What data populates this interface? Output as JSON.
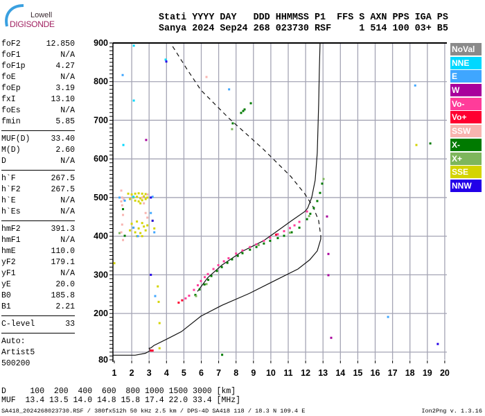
{
  "logo": {
    "line1": "Lowell",
    "line2": "DIGISONDE"
  },
  "header": {
    "labels": "Stati YYYY DAY   DDD HHMMSS P1  FFS S AXN PPS IGA PS",
    "values": "Sanya 2024 Sep24 268 023730 RSF     1 514 100 03+ B5"
  },
  "scaled": [
    [
      [
        "foF2",
        "12.850"
      ],
      [
        "foF1",
        "N/A"
      ],
      [
        "foF1p",
        "4.27"
      ],
      [
        "foE",
        "N/A"
      ],
      [
        "foEp",
        "3.19"
      ],
      [
        "fxI",
        "13.10"
      ],
      [
        "foEs",
        "N/A"
      ],
      [
        "fmin",
        "5.85"
      ]
    ],
    [
      [
        "MUF(D)",
        "33.40"
      ],
      [
        "M(D)",
        "2.60"
      ],
      [
        "D",
        "N/A"
      ]
    ],
    [
      [
        "h`F",
        "267.5"
      ],
      [
        "h`F2",
        "267.5"
      ],
      [
        "h`E",
        "N/A"
      ],
      [
        "h`Es",
        "N/A"
      ]
    ],
    [
      [
        "hmF2",
        "391.3"
      ],
      [
        "hmF1",
        "N/A"
      ],
      [
        "hmE",
        "110.0"
      ],
      [
        "yF2",
        "179.1"
      ],
      [
        "yF1",
        "N/A"
      ],
      [
        "yE",
        "20.0"
      ],
      [
        "B0",
        "185.8"
      ],
      [
        "B1",
        "2.21"
      ]
    ],
    [
      [
        "C-level",
        "33"
      ]
    ],
    [
      [
        "Auto:",
        ""
      ],
      [
        "Artist5",
        ""
      ],
      [
        "500200",
        ""
      ]
    ]
  ],
  "muf_table": {
    "d_row": "D     100  200  400  600  800 1000 1500 3000 [km]",
    "muf_row": "MUF  13.4 13.5 14.0 14.8 15.8 17.4 22.0 33.4 [MHz]"
  },
  "footer": {
    "info": "SA418_2024268023730.RSF / 380fx512h 50 kHz 2.5 km / DPS-4D SA418 118 / 18.3 N 109.4 E",
    "version": "Ion2Png v. 1.3.16"
  },
  "legend": [
    {
      "label": "NoVal",
      "color": "#8a8a8a"
    },
    {
      "label": "NNE",
      "color": "#00d8ff"
    },
    {
      "label": "E",
      "color": "#3fa6ff"
    },
    {
      "label": "W",
      "color": "#a8009c"
    },
    {
      "label": "Vo-",
      "color": "#ff3c9a"
    },
    {
      "label": "Vo+",
      "color": "#ff0030"
    },
    {
      "label": "SSW",
      "color": "#f8b4b0"
    },
    {
      "label": "X-",
      "color": "#007a00"
    },
    {
      "label": "X+",
      "color": "#7db65c"
    },
    {
      "label": "SSE",
      "color": "#d4d400"
    },
    {
      "label": "NNW",
      "color": "#2200e8"
    }
  ],
  "chart_data": {
    "type": "scatter",
    "xlabel": "",
    "ylabel": "",
    "xlim": [
      1,
      20
    ],
    "ylim": [
      80,
      900
    ],
    "x_ticks": [
      "1",
      "2",
      "3",
      "4",
      "5",
      "6",
      "7",
      "8",
      "9",
      "10",
      "11",
      "12",
      "13",
      "14",
      "15",
      "16",
      "17",
      "18",
      "19",
      "20"
    ],
    "y_ticks": [
      {
        "v": 900,
        "label": "900"
      },
      {
        "v": 800,
        "label": "800"
      },
      {
        "v": 700,
        "label": "700"
      },
      {
        "v": 600,
        "label": "600"
      },
      {
        "v": 500,
        "label": "500"
      },
      {
        "v": 400,
        "label": "400"
      },
      {
        "v": 300,
        "label": "300"
      },
      {
        "v": 200,
        "label": "200"
      },
      {
        "v": 80,
        "label": "80"
      }
    ],
    "grid": true,
    "legend_placement": "right",
    "series": [
      {
        "legend": "Vo-",
        "points": [
          [
            5.1,
            239
          ],
          [
            5.3,
            246
          ],
          [
            5.58,
            261
          ],
          [
            5.8,
            273
          ],
          [
            5.98,
            284
          ],
          [
            6.2,
            294
          ],
          [
            6.38,
            302
          ],
          [
            6.7,
            315
          ],
          [
            6.98,
            325
          ],
          [
            7.3,
            335
          ],
          [
            7.57,
            343
          ],
          [
            8.0,
            355
          ],
          [
            8.37,
            363
          ],
          [
            8.8,
            372
          ],
          [
            9.17,
            379
          ],
          [
            9.6,
            388
          ],
          [
            9.96,
            396
          ],
          [
            10.4,
            405
          ],
          [
            10.76,
            413
          ],
          [
            11.1,
            421
          ],
          [
            11.36,
            428
          ],
          [
            11.64,
            437
          ],
          [
            12.08,
            464
          ]
        ]
      },
      {
        "legend": "Vo+",
        "points": [
          [
            4.7,
            228
          ],
          [
            4.9,
            234
          ],
          [
            10.3,
            404
          ],
          [
            3.1,
            104
          ],
          [
            3.2,
            104
          ]
        ]
      },
      {
        "legend": "X-",
        "points": [
          [
            5.66,
            248
          ],
          [
            5.9,
            262
          ],
          [
            6.18,
            275
          ],
          [
            6.4,
            287
          ],
          [
            6.58,
            297
          ],
          [
            6.9,
            310
          ],
          [
            7.18,
            320
          ],
          [
            7.5,
            331
          ],
          [
            7.77,
            340
          ],
          [
            8.1,
            349
          ],
          [
            8.37,
            356
          ],
          [
            8.8,
            365
          ],
          [
            9.17,
            372
          ],
          [
            9.6,
            381
          ],
          [
            9.96,
            388
          ],
          [
            10.4,
            395
          ],
          [
            10.76,
            401
          ],
          [
            11.2,
            410
          ],
          [
            11.64,
            422
          ],
          [
            12.08,
            444
          ],
          [
            12.27,
            458
          ],
          [
            12.47,
            473
          ],
          [
            12.67,
            491
          ],
          [
            12.83,
            512
          ],
          [
            12.95,
            536
          ],
          [
            8.29,
            719
          ],
          [
            8.41,
            724
          ],
          [
            8.49,
            728
          ],
          [
            8.85,
            744
          ],
          [
            7.81,
            692
          ],
          [
            1.5,
            470
          ],
          [
            1.6,
            401
          ],
          [
            19.17,
            640
          ],
          [
            7.2,
            93
          ]
        ]
      },
      {
        "legend": "X+",
        "points": [
          [
            5.7,
            245
          ],
          [
            6.3,
            276
          ],
          [
            9.3,
            377
          ],
          [
            11.1,
            409
          ],
          [
            12.2,
            452
          ],
          [
            13.03,
            548
          ],
          [
            7.77,
            677
          ],
          [
            1.3,
            408
          ]
        ]
      },
      {
        "legend": "SSE",
        "points": [
          [
            1.8,
            510
          ],
          [
            2.0,
            508
          ],
          [
            2.2,
            510
          ],
          [
            2.4,
            511
          ],
          [
            2.6,
            510
          ],
          [
            2.8,
            509
          ],
          [
            2.1,
            500
          ],
          [
            2.3,
            502
          ],
          [
            2.5,
            498
          ],
          [
            2.7,
            503
          ],
          [
            2.9,
            500
          ],
          [
            2.2,
            492
          ],
          [
            2.4,
            490
          ],
          [
            2.6,
            493
          ],
          [
            1.9,
            496
          ],
          [
            2.5,
            485
          ],
          [
            2.8,
            496
          ],
          [
            2.0,
            432
          ],
          [
            2.3,
            438
          ],
          [
            2.6,
            434
          ],
          [
            2.9,
            428
          ],
          [
            2.1,
            422
          ],
          [
            2.4,
            420
          ],
          [
            2.7,
            425
          ],
          [
            2.2,
            410
          ],
          [
            2.5,
            408
          ],
          [
            2.3,
            400
          ],
          [
            2.6,
            400
          ],
          [
            1.9,
            415
          ],
          [
            2.8,
            415
          ],
          [
            3.2,
            440
          ],
          [
            3.3,
            420
          ],
          [
            1.0,
            330
          ],
          [
            3.5,
            270
          ],
          [
            3.55,
            230
          ],
          [
            3.6,
            175
          ],
          [
            3.6,
            110
          ],
          [
            18.37,
            636
          ]
        ]
      },
      {
        "legend": "SSW",
        "points": [
          [
            1.4,
            518
          ],
          [
            1.45,
            500
          ],
          [
            1.4,
            490
          ],
          [
            1.55,
            495
          ],
          [
            1.45,
            480
          ],
          [
            1.5,
            455
          ],
          [
            1.45,
            430
          ],
          [
            1.4,
            410
          ],
          [
            1.5,
            390
          ],
          [
            2.9,
            508
          ],
          [
            2.6,
            500
          ],
          [
            2.7,
            485
          ],
          [
            2.8,
            460
          ],
          [
            2.9,
            448
          ],
          [
            6.3,
            812
          ]
        ]
      },
      {
        "legend": "E",
        "points": [
          [
            1.48,
            817
          ],
          [
            1.3,
            500
          ],
          [
            1.6,
            492
          ],
          [
            2.1,
            422
          ],
          [
            2.35,
            400
          ],
          [
            3.2,
            502
          ],
          [
            3.1,
            460
          ],
          [
            3.3,
            410
          ],
          [
            3.35,
            245
          ],
          [
            16.74,
            191
          ],
          [
            18.3,
            790
          ],
          [
            7.6,
            780
          ]
        ]
      },
      {
        "legend": "NNE",
        "points": [
          [
            2.12,
            893
          ],
          [
            2.12,
            751
          ],
          [
            1.52,
            636
          ],
          [
            2.1,
            502
          ],
          [
            3.95,
            857
          ]
        ]
      },
      {
        "legend": "W",
        "points": [
          [
            2.83,
            649
          ],
          [
            13.23,
            451
          ],
          [
            13.31,
            354
          ],
          [
            13.31,
            299
          ],
          [
            13.47,
            137
          ]
        ]
      },
      {
        "legend": "NNW",
        "points": [
          [
            3.99,
            852
          ],
          [
            3.1,
            500
          ],
          [
            3.2,
            440
          ],
          [
            3.1,
            300
          ],
          [
            19.6,
            121
          ]
        ]
      }
    ],
    "lines": [
      {
        "name_hint": "virtual-height-model",
        "style": "solid",
        "points": [
          [
            5.78,
            257
          ],
          [
            6.38,
            293
          ],
          [
            7.18,
            325
          ],
          [
            8.37,
            361
          ],
          [
            9.57,
            388
          ],
          [
            10.36,
            413
          ],
          [
            11.16,
            439
          ],
          [
            11.96,
            464
          ],
          [
            12.12,
            473
          ],
          [
            12.35,
            500
          ],
          [
            12.55,
            545
          ],
          [
            12.67,
            616
          ],
          [
            12.75,
            742
          ],
          [
            12.79,
            832
          ],
          [
            12.83,
            900
          ]
        ]
      },
      {
        "name_hint": "true-height-profile",
        "style": "solid",
        "points": [
          [
            0.92,
            92
          ],
          [
            2.2,
            92
          ],
          [
            2.79,
            97
          ],
          [
            3.07,
            104
          ],
          [
            3.0,
            110
          ],
          [
            3.11,
            111
          ],
          [
            3.27,
            117
          ],
          [
            3.99,
            133
          ],
          [
            4.86,
            153
          ],
          [
            5.98,
            193
          ],
          [
            7.18,
            221
          ],
          [
            8.77,
            252
          ],
          [
            10.36,
            288
          ],
          [
            11.56,
            315
          ],
          [
            12.24,
            339
          ],
          [
            12.67,
            362
          ],
          [
            12.87,
            392
          ]
        ]
      },
      {
        "name_hint": "x-model",
        "style": "dashed",
        "points": [
          [
            12.87,
            392
          ],
          [
            12.87,
            401
          ],
          [
            12.75,
            440
          ],
          [
            12.43,
            476
          ],
          [
            11.96,
            509
          ],
          [
            11.16,
            554
          ],
          [
            9.57,
            625
          ],
          [
            7.57,
            706
          ],
          [
            5.98,
            778
          ],
          [
            5.18,
            832
          ],
          [
            4.23,
            900
          ]
        ]
      }
    ]
  }
}
